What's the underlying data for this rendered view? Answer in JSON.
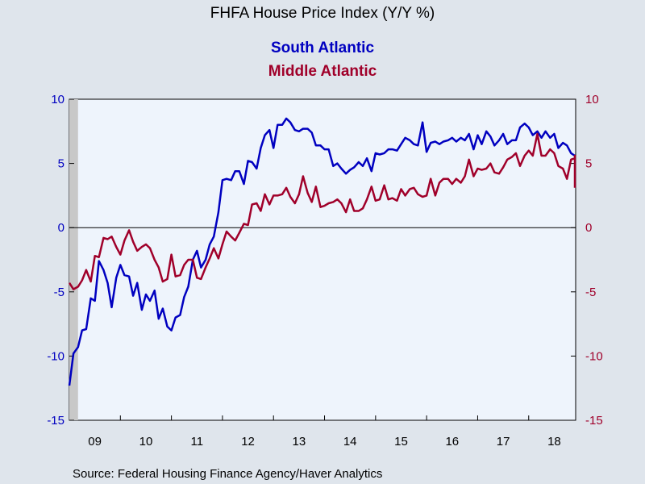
{
  "colors": {
    "south": "#0000c0",
    "middle": "#a0002a",
    "plot_bg": "#eef4fc",
    "page_bg": "#dfe5ec",
    "recession": "#c8c8c8"
  },
  "chart_data": {
    "type": "line",
    "title": "FHFA House Price Index (Y/Y %)",
    "source": "Source:  Federal Housing Finance Agency/Haver Analytics",
    "ylim": [
      -15,
      10
    ],
    "yticks": [
      10,
      5,
      0,
      -5,
      -10,
      -15
    ],
    "ytick_labels": [
      "10",
      "5",
      "0",
      "-5",
      "-10",
      "-15"
    ],
    "xlim": [
      2009.0,
      2018.92
    ],
    "x_labels": [
      "09",
      "10",
      "11",
      "12",
      "13",
      "14",
      "15",
      "16",
      "17",
      "18"
    ],
    "x_label_positions": [
      2009.5,
      2010.5,
      2011.5,
      2012.5,
      2013.5,
      2014.5,
      2015.5,
      2016.5,
      2017.5,
      2018.5
    ],
    "x_ticks": [
      2010,
      2011,
      2012,
      2013,
      2014,
      2015,
      2016,
      2017,
      2018
    ],
    "recession": [
      2009.0,
      2009.17
    ],
    "grid": false,
    "legend": "top-center",
    "series": [
      {
        "name": "South Atlantic",
        "axis": "left",
        "values": [
          [
            2009.0,
            -12.3
          ],
          [
            2009.08,
            -9.8
          ],
          [
            2009.17,
            -9.3
          ],
          [
            2009.25,
            -8.0
          ],
          [
            2009.33,
            -7.9
          ],
          [
            2009.42,
            -5.5
          ],
          [
            2009.5,
            -5.7
          ],
          [
            2009.58,
            -2.6
          ],
          [
            2009.67,
            -3.3
          ],
          [
            2009.75,
            -4.3
          ],
          [
            2009.83,
            -6.2
          ],
          [
            2009.92,
            -3.9
          ],
          [
            2010.0,
            -2.9
          ],
          [
            2010.08,
            -3.7
          ],
          [
            2010.17,
            -3.8
          ],
          [
            2010.25,
            -5.3
          ],
          [
            2010.33,
            -4.3
          ],
          [
            2010.42,
            -6.4
          ],
          [
            2010.5,
            -5.2
          ],
          [
            2010.58,
            -5.7
          ],
          [
            2010.67,
            -4.9
          ],
          [
            2010.75,
            -7.1
          ],
          [
            2010.83,
            -6.3
          ],
          [
            2010.92,
            -7.7
          ],
          [
            2011.0,
            -8.0
          ],
          [
            2011.08,
            -7.0
          ],
          [
            2011.17,
            -6.8
          ],
          [
            2011.25,
            -5.4
          ],
          [
            2011.33,
            -4.6
          ],
          [
            2011.42,
            -2.5
          ],
          [
            2011.5,
            -1.8
          ],
          [
            2011.58,
            -3.1
          ],
          [
            2011.67,
            -2.5
          ],
          [
            2011.75,
            -1.3
          ],
          [
            2011.83,
            -0.7
          ],
          [
            2011.92,
            1.2
          ],
          [
            2012.0,
            3.7
          ],
          [
            2012.08,
            3.8
          ],
          [
            2012.17,
            3.7
          ],
          [
            2012.25,
            4.4
          ],
          [
            2012.33,
            4.4
          ],
          [
            2012.42,
            3.4
          ],
          [
            2012.5,
            5.2
          ],
          [
            2012.58,
            5.1
          ],
          [
            2012.67,
            4.6
          ],
          [
            2012.75,
            6.2
          ],
          [
            2012.83,
            7.2
          ],
          [
            2012.92,
            7.6
          ],
          [
            2013.0,
            6.2
          ],
          [
            2013.08,
            8.0
          ],
          [
            2013.17,
            8.0
          ],
          [
            2013.25,
            8.5
          ],
          [
            2013.33,
            8.2
          ],
          [
            2013.42,
            7.6
          ],
          [
            2013.5,
            7.5
          ],
          [
            2013.58,
            7.7
          ],
          [
            2013.67,
            7.7
          ],
          [
            2013.75,
            7.4
          ],
          [
            2013.83,
            6.4
          ],
          [
            2013.92,
            6.4
          ],
          [
            2014.0,
            6.1
          ],
          [
            2014.08,
            6.1
          ],
          [
            2014.17,
            4.8
          ],
          [
            2014.25,
            5.0
          ],
          [
            2014.33,
            4.6
          ],
          [
            2014.42,
            4.2
          ],
          [
            2014.5,
            4.5
          ],
          [
            2014.58,
            4.7
          ],
          [
            2014.67,
            5.1
          ],
          [
            2014.75,
            4.8
          ],
          [
            2014.83,
            5.4
          ],
          [
            2014.92,
            4.4
          ],
          [
            2015.0,
            5.8
          ],
          [
            2015.08,
            5.7
          ],
          [
            2015.17,
            5.8
          ],
          [
            2015.25,
            6.1
          ],
          [
            2015.33,
            6.1
          ],
          [
            2015.42,
            6.0
          ],
          [
            2015.5,
            6.5
          ],
          [
            2015.58,
            7.0
          ],
          [
            2015.67,
            6.8
          ],
          [
            2015.75,
            6.5
          ],
          [
            2015.83,
            6.4
          ],
          [
            2015.92,
            8.2
          ],
          [
            2016.0,
            5.9
          ],
          [
            2016.08,
            6.6
          ],
          [
            2016.17,
            6.7
          ],
          [
            2016.25,
            6.5
          ],
          [
            2016.33,
            6.7
          ],
          [
            2016.42,
            6.8
          ],
          [
            2016.5,
            7.0
          ],
          [
            2016.58,
            6.7
          ],
          [
            2016.67,
            7.0
          ],
          [
            2016.75,
            6.8
          ],
          [
            2016.83,
            7.3
          ],
          [
            2016.92,
            6.1
          ],
          [
            2017.0,
            7.2
          ],
          [
            2017.08,
            6.5
          ],
          [
            2017.17,
            7.5
          ],
          [
            2017.25,
            7.1
          ],
          [
            2017.33,
            6.4
          ],
          [
            2017.42,
            6.8
          ],
          [
            2017.5,
            7.3
          ],
          [
            2017.58,
            6.5
          ],
          [
            2017.67,
            6.8
          ],
          [
            2017.75,
            6.8
          ],
          [
            2017.83,
            7.8
          ],
          [
            2017.92,
            8.1
          ],
          [
            2018.0,
            7.8
          ],
          [
            2018.08,
            7.2
          ],
          [
            2018.17,
            7.5
          ],
          [
            2018.25,
            7.0
          ],
          [
            2018.33,
            7.5
          ],
          [
            2018.42,
            7.0
          ],
          [
            2018.5,
            7.3
          ],
          [
            2018.58,
            6.2
          ],
          [
            2018.67,
            6.6
          ],
          [
            2018.75,
            6.4
          ],
          [
            2018.83,
            5.8
          ],
          [
            2018.92,
            5.6
          ]
        ]
      },
      {
        "name": "Middle Atlantic",
        "axis": "right",
        "values": [
          [
            2009.0,
            -4.3
          ],
          [
            2009.08,
            -4.8
          ],
          [
            2009.17,
            -4.6
          ],
          [
            2009.25,
            -4.1
          ],
          [
            2009.33,
            -3.3
          ],
          [
            2009.42,
            -4.2
          ],
          [
            2009.5,
            -2.2
          ],
          [
            2009.58,
            -2.3
          ],
          [
            2009.67,
            -0.8
          ],
          [
            2009.75,
            -0.9
          ],
          [
            2009.83,
            -0.7
          ],
          [
            2009.92,
            -1.5
          ],
          [
            2010.0,
            -2.1
          ],
          [
            2010.08,
            -1.0
          ],
          [
            2010.17,
            -0.2
          ],
          [
            2010.25,
            -1.1
          ],
          [
            2010.33,
            -1.8
          ],
          [
            2010.42,
            -1.5
          ],
          [
            2010.5,
            -1.3
          ],
          [
            2010.58,
            -1.6
          ],
          [
            2010.67,
            -2.5
          ],
          [
            2010.75,
            -3.1
          ],
          [
            2010.83,
            -4.2
          ],
          [
            2010.92,
            -4.0
          ],
          [
            2011.0,
            -2.1
          ],
          [
            2011.08,
            -3.8
          ],
          [
            2011.17,
            -3.7
          ],
          [
            2011.25,
            -2.9
          ],
          [
            2011.33,
            -2.5
          ],
          [
            2011.42,
            -2.5
          ],
          [
            2011.5,
            -3.9
          ],
          [
            2011.58,
            -4.0
          ],
          [
            2011.67,
            -3.1
          ],
          [
            2011.75,
            -2.4
          ],
          [
            2011.83,
            -1.6
          ],
          [
            2011.92,
            -2.4
          ],
          [
            2012.0,
            -1.3
          ],
          [
            2012.08,
            -0.3
          ],
          [
            2012.17,
            -0.7
          ],
          [
            2012.25,
            -1.0
          ],
          [
            2012.33,
            -0.4
          ],
          [
            2012.42,
            0.3
          ],
          [
            2012.5,
            0.2
          ],
          [
            2012.58,
            1.8
          ],
          [
            2012.67,
            1.9
          ],
          [
            2012.75,
            1.3
          ],
          [
            2012.83,
            2.6
          ],
          [
            2012.92,
            1.8
          ],
          [
            2013.0,
            2.5
          ],
          [
            2013.08,
            2.5
          ],
          [
            2013.17,
            2.6
          ],
          [
            2013.25,
            3.1
          ],
          [
            2013.33,
            2.4
          ],
          [
            2013.42,
            1.9
          ],
          [
            2013.5,
            2.6
          ],
          [
            2013.58,
            4.0
          ],
          [
            2013.67,
            2.7
          ],
          [
            2013.75,
            2.0
          ],
          [
            2013.83,
            3.2
          ],
          [
            2013.92,
            1.6
          ],
          [
            2014.0,
            1.7
          ],
          [
            2014.08,
            1.9
          ],
          [
            2014.17,
            2.0
          ],
          [
            2014.25,
            2.2
          ],
          [
            2014.33,
            1.9
          ],
          [
            2014.42,
            1.2
          ],
          [
            2014.5,
            2.2
          ],
          [
            2014.58,
            1.3
          ],
          [
            2014.67,
            1.3
          ],
          [
            2014.75,
            1.5
          ],
          [
            2014.83,
            2.2
          ],
          [
            2014.92,
            3.2
          ],
          [
            2015.0,
            2.1
          ],
          [
            2015.08,
            2.2
          ],
          [
            2015.17,
            3.3
          ],
          [
            2015.25,
            2.2
          ],
          [
            2015.33,
            2.3
          ],
          [
            2015.42,
            2.1
          ],
          [
            2015.5,
            3.0
          ],
          [
            2015.58,
            2.5
          ],
          [
            2015.67,
            3.0
          ],
          [
            2015.75,
            3.1
          ],
          [
            2015.83,
            2.6
          ],
          [
            2015.92,
            2.4
          ],
          [
            2016.0,
            2.5
          ],
          [
            2016.08,
            3.8
          ],
          [
            2016.17,
            2.5
          ],
          [
            2016.25,
            3.5
          ],
          [
            2016.33,
            3.8
          ],
          [
            2016.42,
            3.8
          ],
          [
            2016.5,
            3.4
          ],
          [
            2016.58,
            3.8
          ],
          [
            2016.67,
            3.5
          ],
          [
            2016.75,
            4.0
          ],
          [
            2016.83,
            5.3
          ],
          [
            2016.92,
            4.0
          ],
          [
            2017.0,
            4.6
          ],
          [
            2017.08,
            4.5
          ],
          [
            2017.17,
            4.6
          ],
          [
            2017.25,
            5.0
          ],
          [
            2017.33,
            4.3
          ],
          [
            2017.42,
            4.2
          ],
          [
            2017.5,
            4.7
          ],
          [
            2017.58,
            5.3
          ],
          [
            2017.67,
            5.5
          ],
          [
            2017.75,
            5.8
          ],
          [
            2017.83,
            4.8
          ],
          [
            2017.92,
            5.6
          ],
          [
            2018.0,
            6.0
          ],
          [
            2018.08,
            5.6
          ],
          [
            2018.17,
            7.3
          ],
          [
            2018.25,
            5.6
          ],
          [
            2018.33,
            5.6
          ],
          [
            2018.42,
            6.1
          ],
          [
            2018.5,
            5.8
          ],
          [
            2018.58,
            4.8
          ],
          [
            2018.67,
            4.6
          ],
          [
            2018.75,
            3.8
          ],
          [
            2018.83,
            5.3
          ],
          [
            2018.92,
            5.4
          ],
          [
            2019.0,
            5.6
          ],
          [
            2019.04,
            4.2
          ],
          [
            2019.08,
            3.1
          ]
        ]
      }
    ]
  }
}
